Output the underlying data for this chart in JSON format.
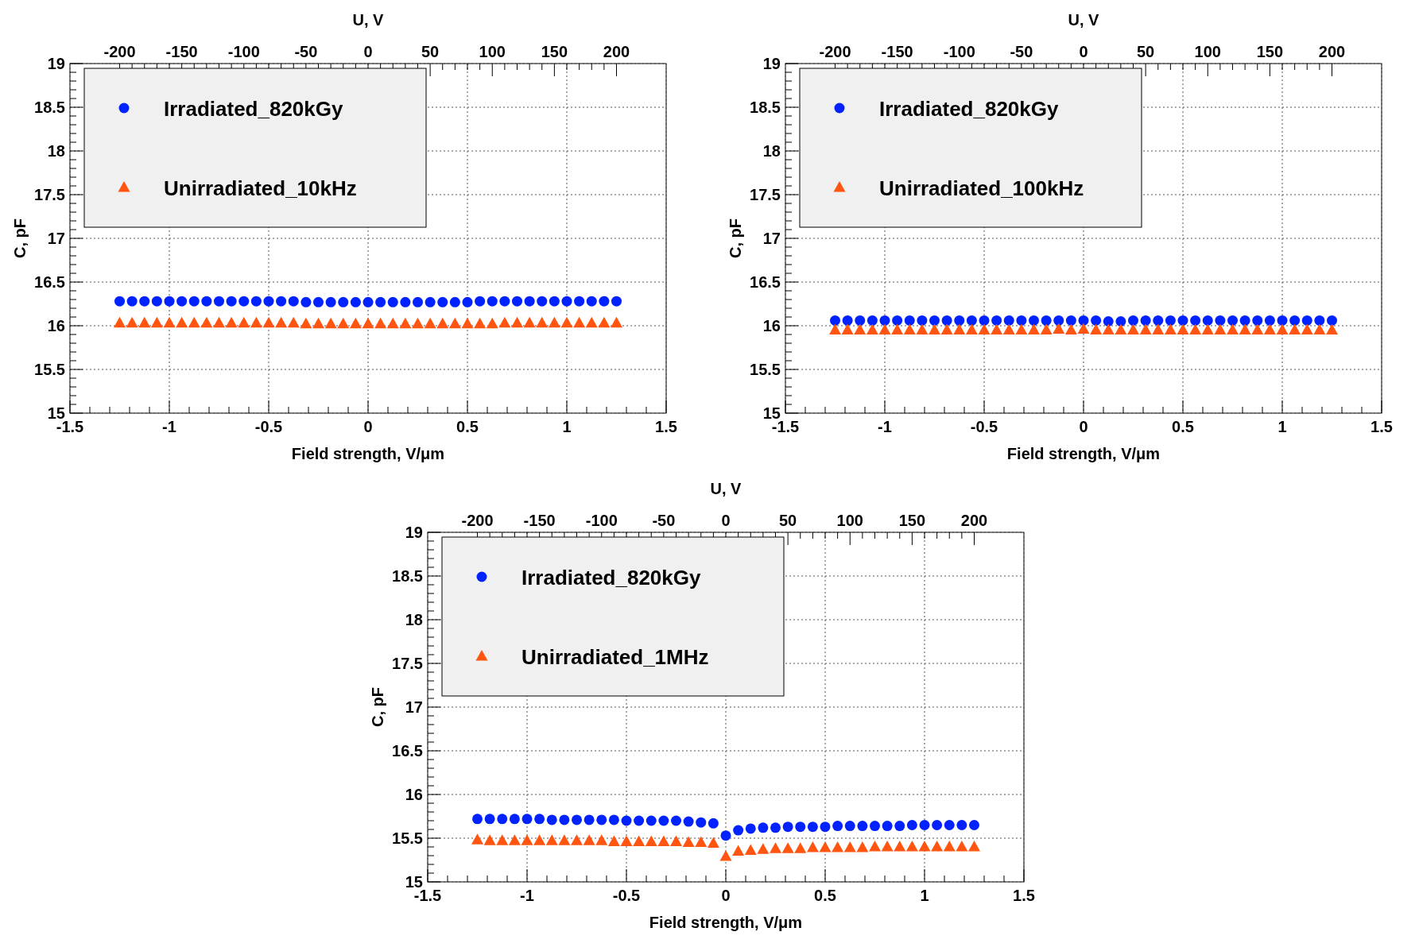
{
  "chart_data": [
    {
      "type": "scatter",
      "x": [
        -1.25,
        -1.1875,
        -1.125,
        -1.0625,
        -1,
        -0.9375,
        -0.875,
        -0.8125,
        -0.75,
        -0.6875,
        -0.625,
        -0.5625,
        -0.5,
        -0.4375,
        -0.375,
        -0.3125,
        -0.25,
        -0.1875,
        -0.125,
        -0.0625,
        0,
        0.0625,
        0.125,
        0.1875,
        0.25,
        0.3125,
        0.375,
        0.4375,
        0.5,
        0.5625,
        0.625,
        0.6875,
        0.75,
        0.8125,
        0.875,
        0.9375,
        1,
        1.0625,
        1.125,
        1.1875,
        1.25
      ],
      "series": [
        {
          "name": "Irradiated_820kGy",
          "color": "#0022ff",
          "marker": "circle",
          "values": [
            16.28,
            16.28,
            16.28,
            16.28,
            16.28,
            16.28,
            16.28,
            16.28,
            16.28,
            16.28,
            16.28,
            16.28,
            16.28,
            16.28,
            16.28,
            16.27,
            16.27,
            16.27,
            16.27,
            16.27,
            16.27,
            16.27,
            16.27,
            16.27,
            16.27,
            16.27,
            16.27,
            16.27,
            16.27,
            16.28,
            16.28,
            16.28,
            16.28,
            16.28,
            16.28,
            16.28,
            16.28,
            16.28,
            16.28,
            16.28,
            16.28
          ]
        },
        {
          "name": "Unirradiated_10kHz",
          "color": "#ff5511",
          "marker": "triangle",
          "values": [
            16.03,
            16.03,
            16.03,
            16.03,
            16.03,
            16.03,
            16.03,
            16.03,
            16.03,
            16.03,
            16.03,
            16.03,
            16.03,
            16.03,
            16.03,
            16.02,
            16.02,
            16.02,
            16.02,
            16.02,
            16.02,
            16.02,
            16.02,
            16.02,
            16.02,
            16.02,
            16.02,
            16.02,
            16.02,
            16.02,
            16.02,
            16.03,
            16.03,
            16.03,
            16.03,
            16.03,
            16.03,
            16.03,
            16.03,
            16.03,
            16.03
          ]
        }
      ],
      "xlim": [
        -1.5,
        1.5
      ],
      "xticks": [
        -1.5,
        -1,
        -0.5,
        0,
        0.5,
        1,
        1.5
      ],
      "ylim": [
        15,
        19
      ],
      "yticks": [
        15,
        15.5,
        16,
        16.5,
        17,
        17.5,
        18,
        18.5,
        19
      ],
      "x2lim": [
        -240,
        240
      ],
      "x2ticks": [
        -200,
        -150,
        -100,
        -50,
        0,
        50,
        100,
        150,
        200
      ],
      "x2label": "U, V",
      "xlabel": "Field strength, V/μm",
      "ylabel": "C, pF",
      "grid": true,
      "legend": "top left"
    },
    {
      "type": "scatter",
      "x": [
        -1.25,
        -1.1875,
        -1.125,
        -1.0625,
        -1,
        -0.9375,
        -0.875,
        -0.8125,
        -0.75,
        -0.6875,
        -0.625,
        -0.5625,
        -0.5,
        -0.4375,
        -0.375,
        -0.3125,
        -0.25,
        -0.1875,
        -0.125,
        -0.0625,
        0,
        0.0625,
        0.125,
        0.1875,
        0.25,
        0.3125,
        0.375,
        0.4375,
        0.5,
        0.5625,
        0.625,
        0.6875,
        0.75,
        0.8125,
        0.875,
        0.9375,
        1,
        1.0625,
        1.125,
        1.1875,
        1.25
      ],
      "series": [
        {
          "name": "Irradiated_820kGy",
          "color": "#0022ff",
          "marker": "circle",
          "values": [
            16.06,
            16.06,
            16.06,
            16.06,
            16.06,
            16.06,
            16.06,
            16.06,
            16.06,
            16.06,
            16.06,
            16.06,
            16.06,
            16.06,
            16.06,
            16.06,
            16.06,
            16.06,
            16.06,
            16.06,
            16.06,
            16.06,
            16.05,
            16.05,
            16.06,
            16.06,
            16.06,
            16.06,
            16.06,
            16.06,
            16.06,
            16.06,
            16.06,
            16.06,
            16.06,
            16.06,
            16.06,
            16.06,
            16.06,
            16.06,
            16.06
          ]
        },
        {
          "name": "Unirradiated_100kHz",
          "color": "#ff5511",
          "marker": "triangle",
          "values": [
            15.95,
            15.95,
            15.95,
            15.95,
            15.95,
            15.95,
            15.95,
            15.95,
            15.95,
            15.95,
            15.95,
            15.95,
            15.95,
            15.95,
            15.95,
            15.95,
            15.95,
            15.95,
            15.96,
            15.95,
            15.96,
            15.95,
            15.95,
            15.95,
            15.95,
            15.95,
            15.95,
            15.95,
            15.95,
            15.95,
            15.95,
            15.95,
            15.95,
            15.95,
            15.95,
            15.95,
            15.95,
            15.95,
            15.95,
            15.95,
            15.95
          ]
        }
      ],
      "xlim": [
        -1.5,
        1.5
      ],
      "xticks": [
        -1.5,
        -1,
        -0.5,
        0,
        0.5,
        1,
        1.5
      ],
      "ylim": [
        15,
        19
      ],
      "yticks": [
        15,
        15.5,
        16,
        16.5,
        17,
        17.5,
        18,
        18.5,
        19
      ],
      "x2lim": [
        -240,
        240
      ],
      "x2ticks": [
        -200,
        -150,
        -100,
        -50,
        0,
        50,
        100,
        150,
        200
      ],
      "x2label": "U, V",
      "xlabel": "Field strength, V/μm",
      "ylabel": "C, pF",
      "grid": true,
      "legend": "top left"
    },
    {
      "type": "scatter",
      "x": [
        -1.25,
        -1.1875,
        -1.125,
        -1.0625,
        -1,
        -0.9375,
        -0.875,
        -0.8125,
        -0.75,
        -0.6875,
        -0.625,
        -0.5625,
        -0.5,
        -0.4375,
        -0.375,
        -0.3125,
        -0.25,
        -0.1875,
        -0.125,
        -0.0625,
        0,
        0.0625,
        0.125,
        0.1875,
        0.25,
        0.3125,
        0.375,
        0.4375,
        0.5,
        0.5625,
        0.625,
        0.6875,
        0.75,
        0.8125,
        0.875,
        0.9375,
        1,
        1.0625,
        1.125,
        1.1875,
        1.25
      ],
      "series": [
        {
          "name": "Irradiated_820kGy",
          "color": "#0022ff",
          "marker": "circle",
          "values": [
            15.72,
            15.72,
            15.72,
            15.72,
            15.72,
            15.72,
            15.71,
            15.71,
            15.71,
            15.71,
            15.71,
            15.71,
            15.7,
            15.7,
            15.7,
            15.7,
            15.7,
            15.69,
            15.68,
            15.67,
            15.53,
            15.59,
            15.61,
            15.62,
            15.62,
            15.63,
            15.63,
            15.63,
            15.63,
            15.64,
            15.64,
            15.64,
            15.64,
            15.64,
            15.64,
            15.65,
            15.65,
            15.65,
            15.65,
            15.65,
            15.65
          ]
        },
        {
          "name": "Unirradiated_1MHz",
          "color": "#ff5511",
          "marker": "triangle",
          "values": [
            15.48,
            15.47,
            15.47,
            15.47,
            15.47,
            15.47,
            15.47,
            15.47,
            15.47,
            15.47,
            15.47,
            15.46,
            15.46,
            15.46,
            15.46,
            15.46,
            15.46,
            15.45,
            15.45,
            15.44,
            15.29,
            15.35,
            15.36,
            15.37,
            15.38,
            15.38,
            15.38,
            15.39,
            15.39,
            15.39,
            15.39,
            15.39,
            15.4,
            15.4,
            15.4,
            15.4,
            15.4,
            15.4,
            15.4,
            15.4,
            15.4
          ]
        }
      ],
      "xlim": [
        -1.5,
        1.5
      ],
      "xticks": [
        -1.5,
        -1,
        -0.5,
        0,
        0.5,
        1,
        1.5
      ],
      "ylim": [
        15,
        19
      ],
      "yticks": [
        15,
        15.5,
        16,
        16.5,
        17,
        17.5,
        18,
        18.5,
        19
      ],
      "x2lim": [
        -240,
        240
      ],
      "x2ticks": [
        -200,
        -150,
        -100,
        -50,
        0,
        50,
        100,
        150,
        200
      ],
      "x2label": "U, V",
      "xlabel": "Field strength, V/μm",
      "ylabel": "C, pF",
      "grid": true,
      "legend": "top left"
    }
  ]
}
